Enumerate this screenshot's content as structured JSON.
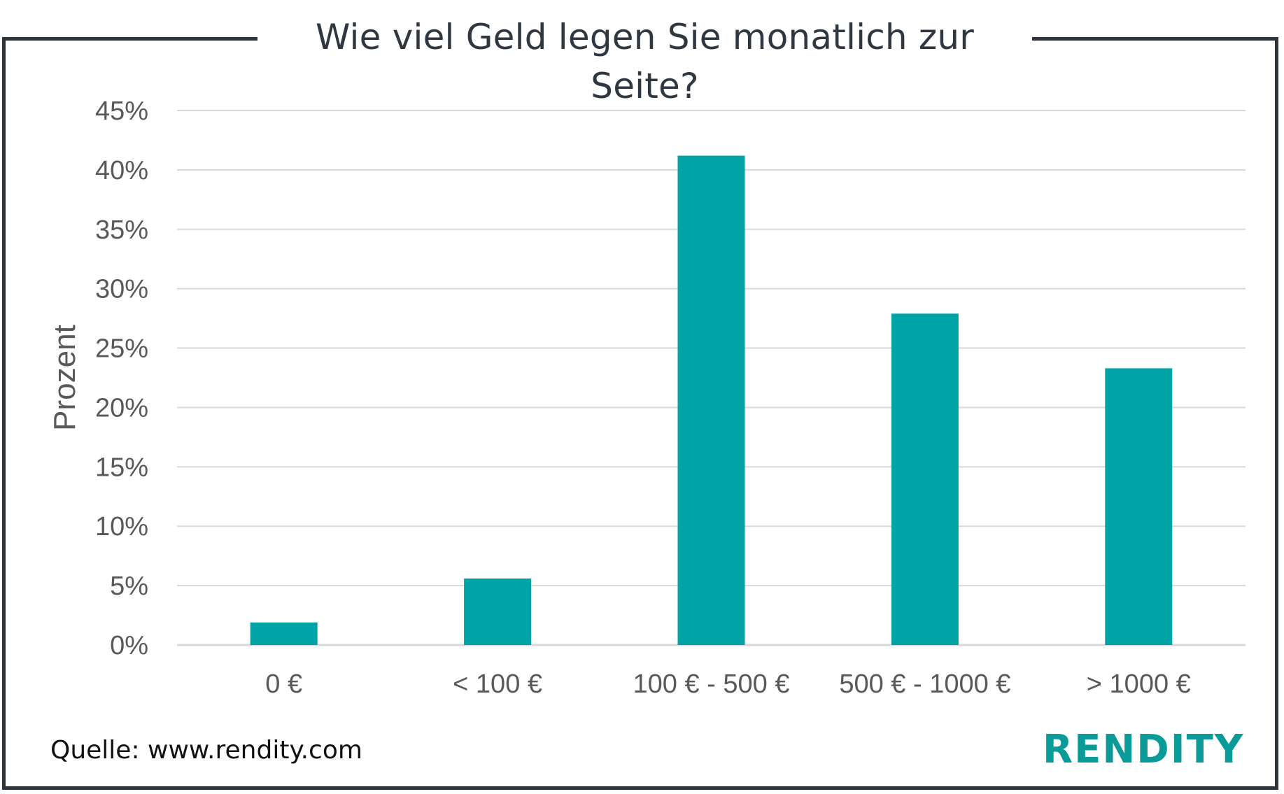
{
  "chart_data": {
    "type": "bar",
    "title": "Wie viel Geld legen Sie monatlich zur Seite?",
    "ylabel": "Prozent",
    "xlabel": "",
    "categories": [
      "0 €",
      "< 100 €",
      "100 € - 500 €",
      "500 € - 1000 €",
      "> 1000 €"
    ],
    "values": [
      1.9,
      5.6,
      41.2,
      27.9,
      23.3
    ],
    "ylim": [
      0,
      45
    ],
    "yticks": [
      0,
      5,
      10,
      15,
      20,
      25,
      30,
      35,
      40,
      45
    ],
    "ytick_labels": [
      "0%",
      "5%",
      "10%",
      "15%",
      "20%",
      "25%",
      "30%",
      "35%",
      "40%",
      "45%"
    ],
    "grid": true,
    "bar_color": "#00a3a6",
    "grid_color": "#d9d9d9",
    "axis_line_color": "#d9d9d9",
    "text_color": "#595959"
  },
  "footer": {
    "source": "Quelle: www.rendity.com",
    "logo_text": "RENDITY",
    "logo_color": "#0a9b99"
  }
}
